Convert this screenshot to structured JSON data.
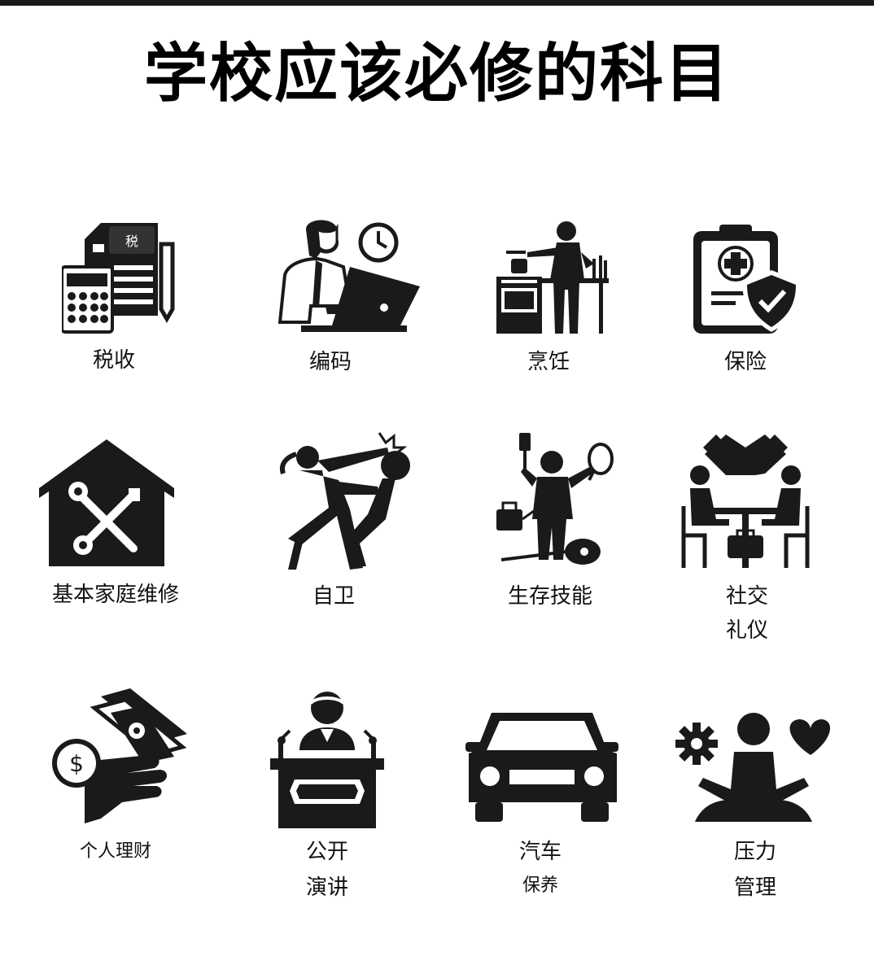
{
  "title": "学校应该必修的科目",
  "tax_badge": "税",
  "subjects": [
    {
      "icon": "tax-document-icon",
      "label": "税收"
    },
    {
      "icon": "person-laptop-icon",
      "label": "编码"
    },
    {
      "icon": "chef-cooking-icon",
      "label": "烹饪"
    },
    {
      "icon": "clipboard-shield-icon",
      "label": "保险"
    },
    {
      "icon": "house-tools-icon",
      "label": "基本家庭维修"
    },
    {
      "icon": "self-defense-icon",
      "label": "自卫"
    },
    {
      "icon": "multi-skill-person-icon",
      "label": "生存技能"
    },
    {
      "icon": "handshake-meeting-icon",
      "label_line1": "社交",
      "label_line2": "礼仪"
    },
    {
      "icon": "money-hand-icon",
      "label": "个人理财"
    },
    {
      "icon": "speaker-podium-icon",
      "label_line1": "公开",
      "label_line2": "演讲"
    },
    {
      "icon": "car-front-icon",
      "label_line1": "汽车",
      "label_line2": "保养"
    },
    {
      "icon": "meditation-icon",
      "label_line1": "压力",
      "label_line2": "管理"
    }
  ]
}
